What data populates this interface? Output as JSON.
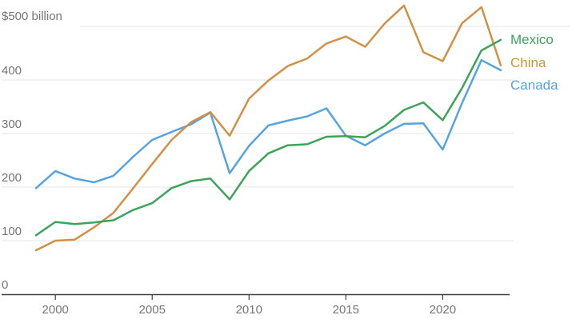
{
  "chart_data": {
    "type": "line",
    "unit_label": "$500 billion",
    "x": [
      1999,
      2000,
      2001,
      2002,
      2003,
      2004,
      2005,
      2006,
      2007,
      2008,
      2009,
      2010,
      2011,
      2012,
      2013,
      2014,
      2015,
      2016,
      2017,
      2018,
      2019,
      2020,
      2021,
      2022,
      2023
    ],
    "series": [
      {
        "name": "Mexico",
        "color": "#3da35a",
        "values": [
          110,
          135,
          131,
          134,
          138,
          157,
          170,
          198,
          211,
          216,
          177,
          230,
          263,
          278,
          280,
          294,
          295,
          293,
          314,
          344,
          358,
          325,
          385,
          455,
          475
        ]
      },
      {
        "name": "China",
        "color": "#cf9146",
        "values": [
          82,
          100,
          102,
          125,
          152,
          197,
          243,
          288,
          321,
          340,
          296,
          365,
          399,
          426,
          440,
          468,
          481,
          462,
          505,
          539,
          452,
          435,
          506,
          536,
          427
        ]
      },
      {
        "name": "Canada",
        "color": "#56a3e2",
        "values": [
          198,
          230,
          216,
          209,
          221,
          256,
          288,
          303,
          317,
          339,
          226,
          277,
          315,
          324,
          332,
          347,
          296,
          278,
          300,
          318,
          319,
          270,
          357,
          437,
          418
        ]
      }
    ],
    "y_ticks": [
      0,
      100,
      200,
      300,
      400
    ],
    "x_ticks": [
      2000,
      2005,
      2010,
      2015,
      2020
    ],
    "ylim": [
      0,
      500
    ],
    "xlim": [
      1999,
      2023
    ],
    "grid": true,
    "legend_position": "right"
  },
  "legend": {
    "mexico": "Mexico",
    "china": "China",
    "canada": "Canada"
  },
  "colors": {
    "gridline": "#e4e4e4",
    "axis": "#3f3f3f",
    "tick_text": "#757575",
    "background": "#ffffff"
  }
}
